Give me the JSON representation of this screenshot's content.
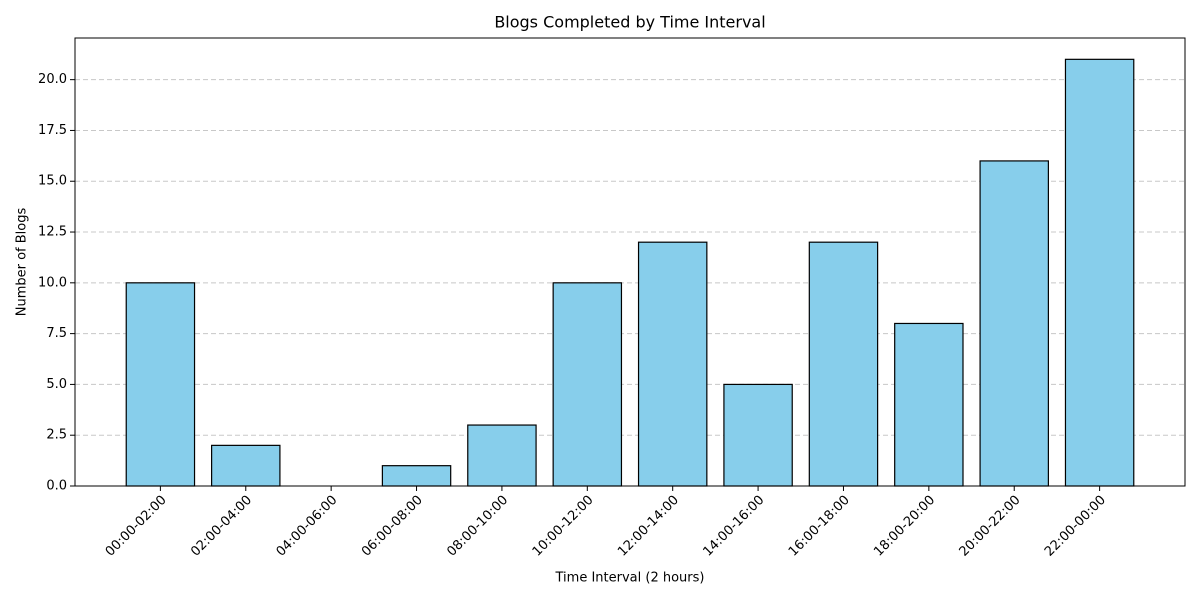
{
  "chart_data": {
    "type": "bar",
    "title": "Blogs Completed by Time Interval",
    "x_label": "Time Interval (2 hours)",
    "y_label": "Number of Blogs",
    "categories": [
      "00:00-02:00",
      "02:00-04:00",
      "04:00-06:00",
      "06:00-08:00",
      "08:00-10:00",
      "10:00-12:00",
      "12:00-14:00",
      "14:00-16:00",
      "16:00-18:00",
      "18:00-20:00",
      "20:00-22:00",
      "22:00-00:00"
    ],
    "values": [
      10,
      2,
      0,
      1,
      3,
      10,
      12,
      5,
      12,
      8,
      16,
      21
    ],
    "color": "#87ceeb",
    "edge_color": "#000000",
    "ylim": [
      0,
      22.05
    ],
    "yticks": [
      {
        "value": 0,
        "label": "0.0"
      },
      2.5,
      {
        "value": 5,
        "label": "5.0"
      },
      7.5,
      {
        "value": 10,
        "label": "10.0"
      },
      12.5,
      {
        "value": 15,
        "label": "15.0"
      },
      17.5,
      {
        "value": 20,
        "label": "20.0"
      }
    ],
    "grid": true
  }
}
